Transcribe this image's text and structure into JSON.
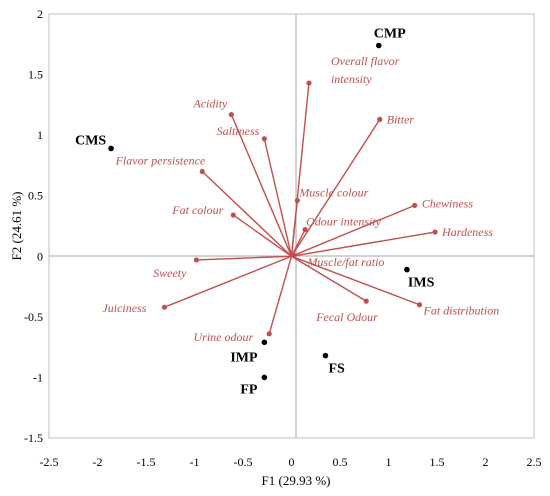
{
  "chart_data": {
    "type": "scatter",
    "subtype": "pca-biplot",
    "xlabel": "F1 (29.93 %)",
    "ylabel": "F2 (24.61 %)",
    "xlim": [
      -2.5,
      2.5
    ],
    "ylim": [
      -1.5,
      2
    ],
    "xticks": [
      "-2.5",
      "-2",
      "-1.5",
      "-1",
      "-0.5",
      "0",
      "0.5",
      "1",
      "1.5",
      "2",
      "2.5"
    ],
    "yticks": [
      "-1.5",
      "-1",
      "-0.5",
      "0",
      "0.5",
      "1",
      "1.5",
      "2"
    ],
    "grid": false,
    "colors": {
      "vectors": "#c0504d",
      "observations": "#000000"
    },
    "variables": [
      {
        "label": "Overall flavor intensity",
        "x": 0.18,
        "y": 1.43
      },
      {
        "label": "Acidity",
        "x": -0.62,
        "y": 1.17
      },
      {
        "label": "Saltiness",
        "x": -0.28,
        "y": 0.97
      },
      {
        "label": "Bitter",
        "x": 0.91,
        "y": 1.13
      },
      {
        "label": "Flavor persistence",
        "x": -0.92,
        "y": 0.7
      },
      {
        "label": "Muscle colour",
        "x": 0.06,
        "y": 0.46
      },
      {
        "label": "Chewiness",
        "x": 1.27,
        "y": 0.42
      },
      {
        "label": "Odour intensity",
        "x": 0.14,
        "y": 0.22
      },
      {
        "label": "Fat colour",
        "x": -0.6,
        "y": 0.34
      },
      {
        "label": "Hardeness",
        "x": 1.48,
        "y": 0.2
      },
      {
        "label": "Muscle/fat ratio",
        "x": 0.02,
        "y": 0.01
      },
      {
        "label": "Sweety",
        "x": -0.98,
        "y": -0.03
      },
      {
        "label": "Juiciness",
        "x": -1.31,
        "y": -0.42
      },
      {
        "label": "Urine odour",
        "x": -0.23,
        "y": -0.64
      },
      {
        "label": "Fecal Odour",
        "x": 0.77,
        "y": -0.37
      },
      {
        "label": "Fat distribution",
        "x": 1.32,
        "y": -0.4
      }
    ],
    "observations": [
      {
        "label": "CMP",
        "x": 0.9,
        "y": 1.74
      },
      {
        "label": "CMS",
        "x": -1.86,
        "y": 0.89
      },
      {
        "label": "IMS",
        "x": 1.19,
        "y": -0.11
      },
      {
        "label": "IMP",
        "x": -0.28,
        "y": -0.71
      },
      {
        "label": "FS",
        "x": 0.35,
        "y": -0.82
      },
      {
        "label": "FP",
        "x": -0.28,
        "y": -1.0
      }
    ]
  }
}
